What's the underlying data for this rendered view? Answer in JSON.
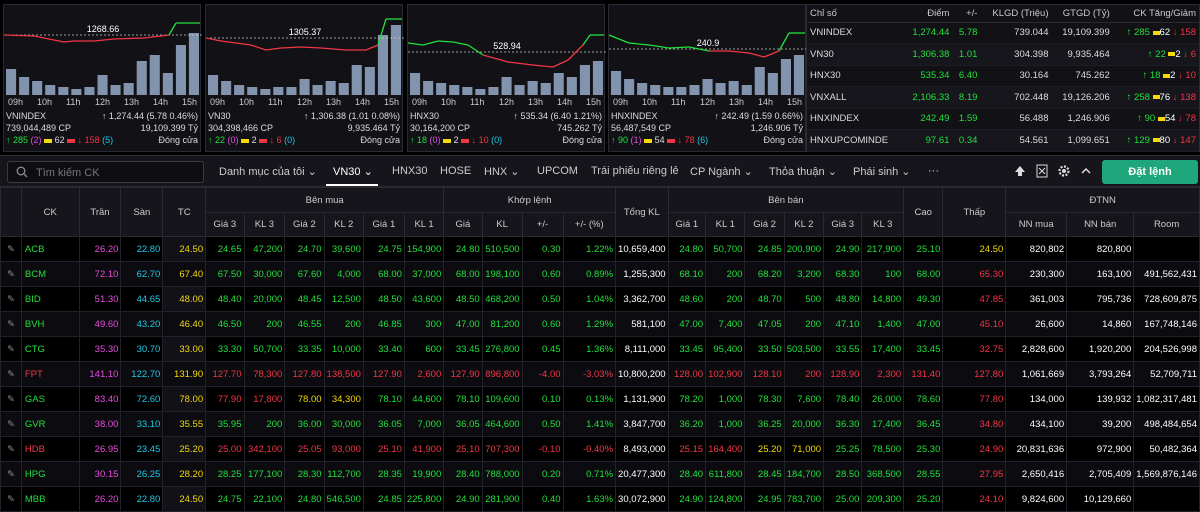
{
  "panels": [
    {
      "price": "1268.66",
      "name": "VNINDEX",
      "change": "↑ 1,274.44 (5.78 0.46%)",
      "volume": "739,044,489 CP",
      "value": "19,109.399 Tỷ",
      "up": "↑ 285",
      "ceil": "(2)",
      "ref": "62",
      "down": "↓ 158",
      "floor": "(5)",
      "status": "Đóng cửa",
      "times": [
        "09h",
        "10h",
        "11h",
        "12h",
        "13h",
        "14h",
        "15h"
      ]
    },
    {
      "price": "1305.37",
      "name": "VN30",
      "change": "↑ 1,306.38 (1.01 0.08%)",
      "volume": "304,398,466 CP",
      "value": "9,935.464 Tỷ",
      "up": "↑ 22",
      "ceil": "(0)",
      "ref": "2",
      "down": "↓ 6",
      "floor": "(0)",
      "status": "Đóng cửa",
      "times": [
        "09h",
        "10h",
        "11h",
        "12h",
        "13h",
        "14h",
        "15h"
      ]
    },
    {
      "price": "528.94",
      "name": "HNX30",
      "change": "↑ 535.34 (6.40 1.21%)",
      "volume": "30,164,200 CP",
      "value": "745.262 Tỷ",
      "up": "↑ 18",
      "ceil": "(0)",
      "ref": "2",
      "down": "↓ 10",
      "floor": "(0)",
      "status": "Đóng cửa",
      "times": [
        "09h",
        "10h",
        "11h",
        "12h",
        "13h",
        "14h",
        "15h"
      ]
    },
    {
      "price": "240.9",
      "name": "HNXINDEX",
      "change": "↑ 242.49 (1.59 0.66%)",
      "volume": "56,487,549 CP",
      "value": "1,246.906 Tỷ",
      "up": "↑ 90",
      "ceil": "(1)",
      "ref": "54",
      "down": "↓ 78",
      "floor": "(6)",
      "status": "Đóng cửa",
      "times": [
        "09h",
        "10h",
        "11h",
        "12h",
        "13h",
        "14h",
        "15h"
      ]
    }
  ],
  "index_table": {
    "headers": [
      "Chỉ số",
      "Điểm",
      "+/-",
      "KLGD (Triệu)",
      "GTGD (Tỷ)",
      "CK Tăng/Giảm"
    ],
    "rows": [
      {
        "name": "VNINDEX",
        "point": "1,274.44",
        "chg": "5.78",
        "vol": "739.044",
        "val": "19,109.399",
        "up": "↑ 285",
        "ref": "62",
        "down": "↓ 158"
      },
      {
        "name": "VN30",
        "point": "1,306.38",
        "chg": "1.01",
        "vol": "304.398",
        "val": "9,935.464",
        "up": "↑ 22",
        "ref": "2",
        "down": "↓ 6"
      },
      {
        "name": "HNX30",
        "point": "535.34",
        "chg": "6.40",
        "vol": "30.164",
        "val": "745.262",
        "up": "↑ 18",
        "ref": "2",
        "down": "↓ 10"
      },
      {
        "name": "VNXALL",
        "point": "2,106.33",
        "chg": "8.19",
        "vol": "702.448",
        "val": "19,126.206",
        "up": "↑ 258",
        "ref": "76",
        "down": "↓ 138"
      },
      {
        "name": "HNXINDEX",
        "point": "242.49",
        "chg": "1.59",
        "vol": "56.488",
        "val": "1,246.906",
        "up": "↑ 90",
        "ref": "54",
        "down": "↓ 78"
      },
      {
        "name": "HNXUPCOMINDE",
        "point": "97.61",
        "chg": "0.34",
        "vol": "54.561",
        "val": "1,099.651",
        "up": "↑ 129",
        "ref": "80",
        "down": "↓ 147"
      }
    ]
  },
  "toolbar": {
    "search_placeholder": "Tìm kiếm CK",
    "tabs": [
      "Danh mục của tôi",
      "VN30",
      "HNX30",
      "HOSE",
      "HNX",
      "UPCOM",
      "Trái phiếu riêng lẻ",
      "CP Ngành",
      "Thỏa thuận",
      "Phái sinh",
      "···"
    ],
    "order_label": "Đặt lệnh"
  },
  "board": {
    "h_ck": "CK",
    "h_ceil": "Trần",
    "h_floor": "Sàn",
    "h_ref": "TC",
    "h_buy": "Bên mua",
    "h_match": "Khớp lệnh",
    "h_total": "Tổng KL",
    "h_sell": "Bên bán",
    "h_high": "Cao",
    "h_low": "Thấp",
    "h_foreign": "ĐTNN",
    "sub": [
      "Giá 3",
      "KL 3",
      "Giá 2",
      "KL 2",
      "Giá 1",
      "KL 1",
      "Giá",
      "KL",
      "+/-",
      "+/- (%)",
      "Giá 1",
      "KL 1",
      "Giá 2",
      "KL 2",
      "Giá 3",
      "KL 3",
      "NN mua",
      "NN bán",
      "Room"
    ],
    "rows": [
      [
        "ACB",
        "26.20",
        "22.80",
        "24.50",
        "24.65",
        "47,200",
        "24.70",
        "39,600",
        "24.75",
        "154,900",
        "24.80",
        "510,500",
        "0.30",
        "1.22%",
        "10,659,400",
        "24.80",
        "50,700",
        "24.85",
        "200,900",
        "24.90",
        "217,900",
        "25.10",
        "24.50",
        "820,802",
        "820,800",
        ""
      ],
      [
        "BCM",
        "72.10",
        "62.70",
        "67.40",
        "67.50",
        "30,000",
        "67.60",
        "4,000",
        "68.00",
        "37,000",
        "68.00",
        "198,100",
        "0.60",
        "0.89%",
        "1,255,300",
        "68.10",
        "200",
        "68.20",
        "3,200",
        "68.30",
        "100",
        "68.00",
        "65.30",
        "230,300",
        "163,100",
        "491,562,431"
      ],
      [
        "BID",
        "51.30",
        "44.65",
        "48.00",
        "48.40",
        "20,000",
        "48.45",
        "12,500",
        "48.50",
        "43,600",
        "48.50",
        "468,200",
        "0.50",
        "1.04%",
        "3,362,700",
        "48.60",
        "200",
        "48.70",
        "500",
        "48.80",
        "14,800",
        "49.30",
        "47.85",
        "361,003",
        "795,736",
        "728,609,875"
      ],
      [
        "BVH",
        "49.60",
        "43.20",
        "46.40",
        "46.50",
        "200",
        "46.55",
        "200",
        "46.85",
        "300",
        "47.00",
        "81,200",
        "0.60",
        "1.29%",
        "581,100",
        "47.00",
        "7,400",
        "47.05",
        "200",
        "47.10",
        "1,400",
        "47.00",
        "45.10",
        "26,600",
        "14,860",
        "167,748,146"
      ],
      [
        "CTG",
        "35.30",
        "30.70",
        "33.00",
        "33.30",
        "50,700",
        "33.35",
        "10,000",
        "33.40",
        "600",
        "33.45",
        "276,800",
        "0.45",
        "1.36%",
        "8,111,000",
        "33.45",
        "95,400",
        "33.50",
        "503,500",
        "33.55",
        "17,400",
        "33.45",
        "32.75",
        "2,828,600",
        "1,920,200",
        "204,526,998"
      ],
      [
        "FPT",
        "141.10",
        "122.70",
        "131.90",
        "127.70",
        "78,300",
        "127.80",
        "138,500",
        "127.90",
        "2,600",
        "127.90",
        "896,800",
        "-4.00",
        "-3.03%",
        "10,800,200",
        "128.00",
        "102,900",
        "128.10",
        "200",
        "128.90",
        "2,300",
        "131.40",
        "127.80",
        "1,061,669",
        "3,793,264",
        "52,709,711"
      ],
      [
        "GAS",
        "83.40",
        "72.60",
        "78.00",
        "77.90",
        "17,800",
        "78.00",
        "34,300",
        "78.10",
        "44,600",
        "78.10",
        "109,600",
        "0.10",
        "0.13%",
        "1,131,900",
        "78.20",
        "1,000",
        "78.30",
        "7,600",
        "78.40",
        "26,000",
        "78.60",
        "77.80",
        "134,000",
        "139,932",
        "1,082,317,481"
      ],
      [
        "GVR",
        "38.00",
        "33.10",
        "35.55",
        "35.95",
        "200",
        "36.00",
        "30,000",
        "36.05",
        "7,000",
        "36.05",
        "464,600",
        "0.50",
        "1.41%",
        "3,847,700",
        "36.20",
        "1,000",
        "36.25",
        "20,000",
        "36.30",
        "17,400",
        "36.45",
        "34.80",
        "434,100",
        "39,200",
        "498,484,654"
      ],
      [
        "HDB",
        "26.95",
        "23.45",
        "25.20",
        "25.00",
        "342,100",
        "25.05",
        "93,000",
        "25.10",
        "41,900",
        "25.10",
        "707,300",
        "-0.10",
        "-0.40%",
        "8,493,000",
        "25.15",
        "164,400",
        "25.20",
        "71,000",
        "25.25",
        "78,500",
        "25.30",
        "24.90",
        "20,831,636",
        "972,900",
        "50,482,364"
      ],
      [
        "HPG",
        "30.15",
        "26.25",
        "28.20",
        "28.25",
        "177,100",
        "28.30",
        "112,700",
        "28.35",
        "19,900",
        "28.40",
        "788,000",
        "0.20",
        "0.71%",
        "20,477,300",
        "28.40",
        "611,800",
        "28.45",
        "184,700",
        "28.50",
        "368,500",
        "28.55",
        "27.95",
        "2,650,416",
        "2,705,409",
        "1,569,876,146"
      ],
      [
        "MBB",
        "26.20",
        "22.80",
        "24.50",
        "24.75",
        "22,100",
        "24.80",
        "546,500",
        "24.85",
        "225,800",
        "24.90",
        "281,900",
        "0.40",
        "1.63%",
        "30,072,900",
        "24.90",
        "124,800",
        "24.95",
        "783,700",
        "25.00",
        "209,300",
        "25.20",
        "24.10",
        "9,824,600",
        "10,129,660",
        ""
      ]
    ],
    "colors": [
      [
        "y",
        "pu",
        "cy",
        "y",
        "g",
        "g",
        "g",
        "g",
        "g",
        "g",
        "g",
        "g",
        "g",
        "g",
        "wh",
        "g",
        "g",
        "g",
        "g",
        "g",
        "g",
        "g",
        "y",
        "wh",
        "wh",
        "wh"
      ],
      [
        "g"
      ],
      [
        "g"
      ],
      [
        "g"
      ],
      [
        "g"
      ],
      [
        "rd"
      ],
      [
        "g"
      ],
      [
        "g"
      ],
      [
        "rd"
      ],
      [
        "g"
      ],
      [
        "g"
      ]
    ]
  }
}
